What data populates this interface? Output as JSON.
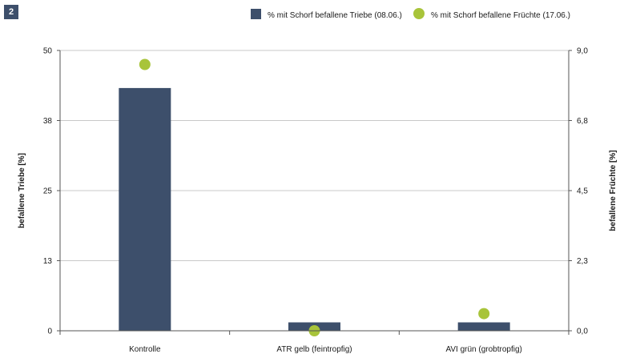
{
  "figure_number": "2",
  "chart_data": {
    "type": "bar",
    "categories": [
      "Kontrolle",
      "ATR gelb (feintropfig)",
      "AVI grün (grobtropfig)"
    ],
    "series": [
      {
        "name": "% mit Schorf befallene Triebe (08.06.)",
        "type": "bar",
        "axis": "left",
        "color": "#3d4f6b",
        "values": [
          43.3,
          1.5,
          1.5
        ]
      },
      {
        "name": "% mit Schorf befallene Früchte (17.06.)",
        "type": "scatter",
        "axis": "right",
        "color": "#a8c43a",
        "values": [
          8.55,
          0.0,
          0.55
        ]
      }
    ],
    "ylabel_left": "befallene Triebe [%]",
    "ylabel_right": "befallene Früchte [%]",
    "ylim_left": [
      0,
      50
    ],
    "ylim_right": [
      0,
      9
    ],
    "yticks_left": [
      "0",
      "13",
      "25",
      "38",
      "50"
    ],
    "yticks_right": [
      "0,0",
      "2,3",
      "4,5",
      "6,8",
      "9,0"
    ],
    "grid": true,
    "legend_position": "top-right"
  }
}
